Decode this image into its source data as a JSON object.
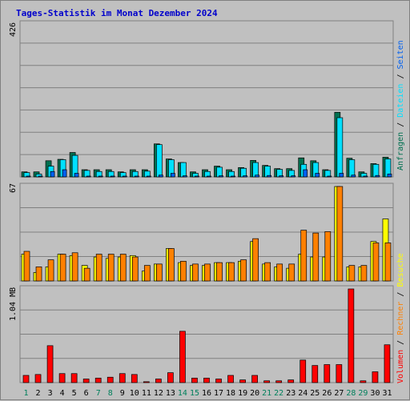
{
  "title": "Tages-Statistik im Monat Dezember 2024",
  "colors": {
    "anfragen": "#007050",
    "dateien": "#00e0ff",
    "seiten": "#0060f0",
    "besuche": "#ffff00",
    "rechner": "#ff8000",
    "volumen": "#ff0000",
    "weekend": "#00805c",
    "weekday": "#000000",
    "title": "#0000cc"
  },
  "legend_right_top": [
    "Anfragen",
    "Dateien",
    "Seiten"
  ],
  "legend_right_bottom": [
    "Volumen",
    "Rechner",
    "Besuche"
  ],
  "legend_separator": "/",
  "chart_data": {
    "type": "bar",
    "categories": [
      "1",
      "2",
      "3",
      "4",
      "5",
      "6",
      "7",
      "8",
      "9",
      "10",
      "11",
      "12",
      "13",
      "14",
      "15",
      "16",
      "17",
      "18",
      "19",
      "20",
      "21",
      "22",
      "23",
      "24",
      "25",
      "26",
      "27",
      "28",
      "29",
      "30",
      "31"
    ],
    "weekend_days": [
      "1",
      "7",
      "8",
      "14",
      "15",
      "21",
      "22",
      "28",
      "29"
    ],
    "panels": [
      {
        "id": "requests",
        "ymax_label": "426",
        "ymax": 426,
        "series": [
          {
            "name": "Anfragen",
            "values": [
              14,
              14,
              45,
              49,
              68,
              20,
              20,
              20,
              14,
              20,
              20,
              92,
              50,
              40,
              14,
              20,
              30,
              20,
              26,
              46,
              32,
              23,
              23,
              53,
              45,
              20,
              180,
              52,
              14,
              37,
              55
            ]
          },
          {
            "name": "Dateien",
            "values": [
              12,
              8,
              30,
              48,
              60,
              18,
              15,
              15,
              12,
              15,
              16,
              90,
              48,
              40,
              10,
              15,
              27,
              15,
              24,
              40,
              30,
              21,
              18,
              35,
              40,
              18,
              165,
              48,
              10,
              35,
              50
            ]
          },
          {
            "name": "Seiten",
            "values": [
              2,
              2,
              15,
              20,
              10,
              2,
              2,
              2,
              2,
              2,
              2,
              5,
              10,
              3,
              2,
              2,
              3,
              2,
              3,
              5,
              4,
              3,
              3,
              20,
              10,
              2,
              10,
              5,
              2,
              4,
              8
            ]
          }
        ]
      },
      {
        "id": "visits",
        "ymax_label": "67",
        "ymax": 67,
        "series": [
          {
            "name": "Besuche",
            "values": [
              19,
              6,
              10,
              19,
              18,
              11,
              17,
              16,
              17,
              18,
              7,
              12,
              23,
              13,
              11,
              11,
              13,
              13,
              14,
              28,
              12,
              10,
              9,
              19,
              17,
              17,
              67,
              10,
              10,
              28,
              44
            ]
          },
          {
            "name": "Rechner",
            "values": [
              21,
              10,
              15,
              19,
              20,
              9,
              19,
              19,
              19,
              17,
              11,
              12,
              23,
              14,
              12,
              12,
              13,
              13,
              15,
              30,
              13,
              12,
              12,
              36,
              34,
              35,
              67,
              11,
              11,
              27,
              27
            ]
          }
        ]
      },
      {
        "id": "volume",
        "ymax_label": "1.04 MB",
        "ymax": 1.04,
        "series": [
          {
            "name": "Volumen",
            "values": [
              0.08,
              0.09,
              0.41,
              0.1,
              0.1,
              0.04,
              0.05,
              0.06,
              0.1,
              0.09,
              0.01,
              0.04,
              0.11,
              0.57,
              0.05,
              0.05,
              0.04,
              0.08,
              0.03,
              0.08,
              0.02,
              0.02,
              0.03,
              0.25,
              0.19,
              0.2,
              0.2,
              1.04,
              0.02,
              0.12,
              0.42
            ]
          }
        ]
      }
    ]
  }
}
